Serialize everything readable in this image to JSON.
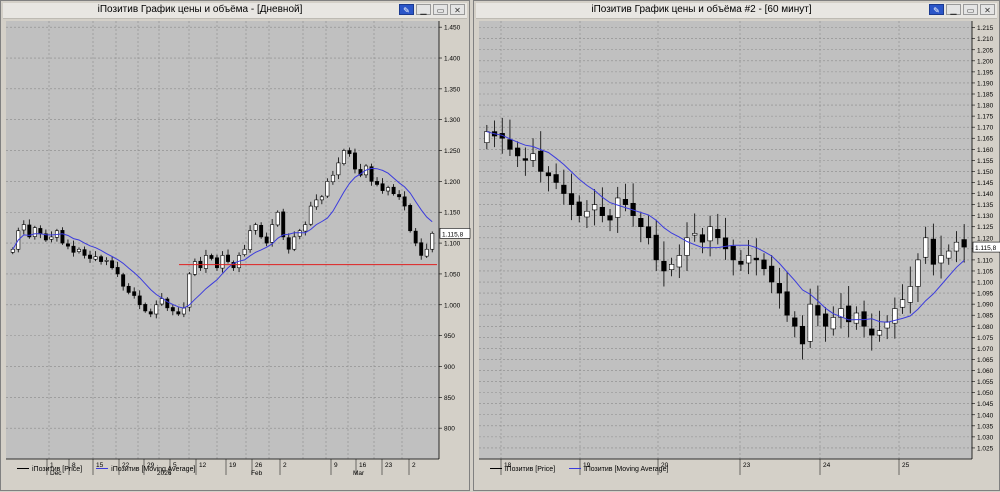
{
  "colors": {
    "grid": "#8a8a8a",
    "plot_bg": "#c0c0c0",
    "ma": "#3b3bdd",
    "level": "#e02020",
    "candle": "#000000"
  },
  "left": {
    "title": "iПозитив График цены и объёма - [Дневной]",
    "price_tag": "1.115,8",
    "legend": {
      "price": "iПозитив [Price]",
      "ma": "iПозитив [Moving Average]"
    },
    "xlabels_top": [
      "1",
      "8",
      "15",
      "22",
      "29",
      "5",
      "12",
      "19",
      "26",
      "2",
      "9",
      "16",
      "23",
      "2",
      "9",
      "16"
    ],
    "xlabels_bottom": [
      "Dec",
      "2026",
      "Feb",
      "Mar"
    ]
  },
  "right": {
    "title": "iПозитив График цены и объёма #2 - [60 минут]",
    "price_tag": "1.115,8",
    "legend": {
      "price": "iПозитив [Price]",
      "ma": "iПозитив [Moving Average]"
    },
    "xlabels_top": [
      "18",
      "19",
      "20",
      "23",
      "24",
      "25"
    ]
  },
  "chart_data": [
    {
      "type": "candlestick",
      "title": "iПозитив График цены и объёма - [Дневной]",
      "ylim": [
        750,
        1460
      ],
      "yticks": [
        800,
        850,
        900,
        950,
        1000,
        1050,
        1100,
        1150,
        1200,
        1250,
        1300,
        1350,
        1400,
        1450
      ],
      "close": [
        1090,
        1120,
        1130,
        1110,
        1125,
        1115,
        1105,
        1110,
        1120,
        1100,
        1095,
        1085,
        1090,
        1080,
        1075,
        1078,
        1070,
        1072,
        1060,
        1050,
        1030,
        1020,
        1015,
        1000,
        990,
        985,
        1000,
        1010,
        995,
        990,
        985,
        995,
        1050,
        1070,
        1060,
        1080,
        1075,
        1060,
        1080,
        1070,
        1060,
        1080,
        1090,
        1120,
        1130,
        1110,
        1100,
        1130,
        1150,
        1110,
        1090,
        1110,
        1120,
        1130,
        1160,
        1170,
        1175,
        1200,
        1210,
        1230,
        1250,
        1245,
        1220,
        1210,
        1225,
        1200,
        1195,
        1185,
        1190,
        1180,
        1175,
        1160,
        1120,
        1100,
        1080,
        1090,
        1115.8
      ],
      "moving_average_last": 1140,
      "horizontal_level": 1065,
      "x_tick_labels": [
        "1",
        "8",
        "15",
        "22",
        "29",
        "5",
        "12",
        "19",
        "26",
        "2",
        "9",
        "16",
        "23",
        "2",
        "9",
        "16"
      ],
      "x_month_labels": [
        "Dec",
        "2026",
        "Feb",
        "Mar"
      ],
      "last_price": "1.115,8",
      "series": [
        {
          "name": "iПозитив [Price]"
        },
        {
          "name": "iПозитив [Moving Average]"
        }
      ],
      "grid": true
    },
    {
      "type": "candlestick",
      "title": "iПозитив График цены и объёма #2 - [60 минут]",
      "ylim": [
        1020,
        1218
      ],
      "yticks": [
        1025,
        1030,
        1035,
        1040,
        1045,
        1050,
        1055,
        1060,
        1065,
        1070,
        1075,
        1080,
        1085,
        1090,
        1095,
        1100,
        1105,
        1110,
        1115,
        1120,
        1125,
        1130,
        1135,
        1140,
        1145,
        1150,
        1155,
        1160,
        1165,
        1170,
        1175,
        1180,
        1185,
        1190,
        1195,
        1200,
        1205,
        1210,
        1215
      ],
      "close": [
        1168,
        1166,
        1165,
        1160,
        1157,
        1155,
        1158,
        1150,
        1148,
        1145,
        1140,
        1135,
        1130,
        1132,
        1135,
        1130,
        1128,
        1138,
        1135,
        1130,
        1125,
        1120,
        1110,
        1105,
        1108,
        1112,
        1120,
        1122,
        1118,
        1125,
        1120,
        1115,
        1110,
        1108,
        1112,
        1110,
        1106,
        1100,
        1095,
        1085,
        1080,
        1072,
        1090,
        1085,
        1080,
        1084,
        1088,
        1082,
        1086,
        1080,
        1076,
        1078,
        1082,
        1088,
        1092,
        1098,
        1110,
        1120,
        1108,
        1112,
        1114,
        1118,
        1115.8
      ],
      "moving_average_last": 1110,
      "x_tick_labels": [
        "18",
        "19",
        "20",
        "23",
        "24",
        "25"
      ],
      "last_price": "1.115,8",
      "series": [
        {
          "name": "iПозитив [Price]"
        },
        {
          "name": "iПозитив [Moving Average]"
        }
      ],
      "grid": true
    }
  ]
}
